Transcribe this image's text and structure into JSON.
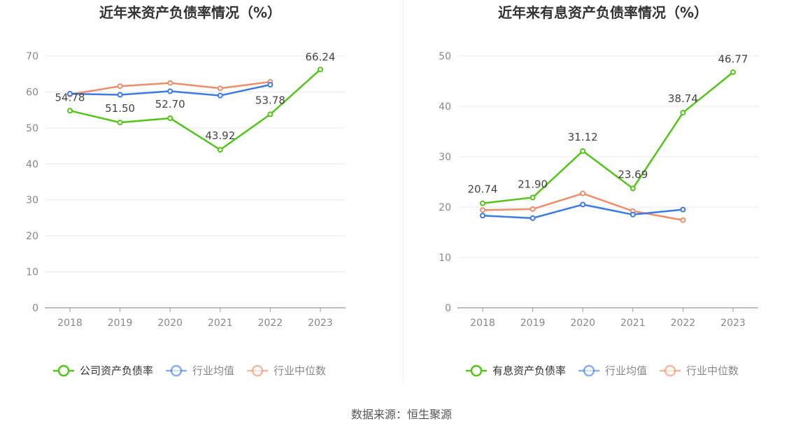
{
  "source_text": "数据来源：恒生聚源",
  "chart_data": [
    {
      "type": "line",
      "title": "近年来资产负债率情况（%）",
      "categories": [
        "2018",
        "2019",
        "2020",
        "2021",
        "2022",
        "2023"
      ],
      "yticks": [
        "0",
        "10",
        "20",
        "30",
        "40",
        "50",
        "60",
        "70"
      ],
      "ylim": [
        0,
        70
      ],
      "grid": true,
      "legend_position": "bottom",
      "series": [
        {
          "name": "公司资产负债率",
          "color": "#52c41a",
          "values": [
            54.78,
            51.5,
            52.7,
            43.92,
            53.78,
            66.24
          ],
          "labels": [
            "54.78",
            "51.50",
            "52.70",
            "43.92",
            "53.78",
            "66.24"
          ]
        },
        {
          "name": "行业均值",
          "color": "#3d7ae6",
          "values": [
            59.5,
            59.2,
            60.2,
            59.0,
            62.0,
            null
          ]
        },
        {
          "name": "行业中位数",
          "color": "#f08c67",
          "values": [
            59.3,
            61.6,
            62.5,
            61.0,
            62.8,
            null
          ]
        }
      ]
    },
    {
      "type": "line",
      "title": "近年来有息资产负债率情况（%）",
      "categories": [
        "2018",
        "2019",
        "2020",
        "2021",
        "2022",
        "2023"
      ],
      "yticks": [
        "0",
        "10",
        "20",
        "30",
        "40",
        "50"
      ],
      "ylim": [
        0,
        50
      ],
      "grid": true,
      "legend_position": "bottom",
      "series": [
        {
          "name": "有息资产负债率",
          "color": "#52c41a",
          "values": [
            20.74,
            21.9,
            31.12,
            23.69,
            38.74,
            46.77
          ],
          "labels": [
            "20.74",
            "21.90",
            "31.12",
            "23.69",
            "38.74",
            "46.77"
          ]
        },
        {
          "name": "行业均值",
          "color": "#3d7ae6",
          "values": [
            18.3,
            17.8,
            20.5,
            18.5,
            19.5,
            null
          ]
        },
        {
          "name": "行业中位数",
          "color": "#f08c67",
          "values": [
            19.4,
            19.6,
            22.7,
            19.2,
            17.4,
            null
          ]
        }
      ]
    }
  ]
}
